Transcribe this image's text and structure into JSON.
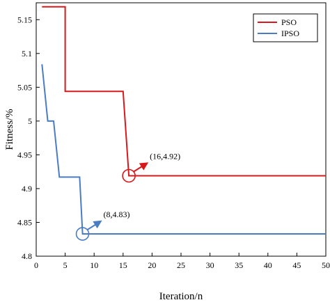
{
  "chart_data": {
    "type": "line",
    "title": "",
    "xlabel": "Iteration/n",
    "ylabel": "Fitness/%",
    "xlim": [
      0,
      50
    ],
    "ylim": [
      4.8,
      5.175
    ],
    "xticks": [
      0,
      5,
      10,
      15,
      20,
      25,
      30,
      35,
      40,
      45,
      50
    ],
    "yticks": [
      4.8,
      4.85,
      4.9,
      4.95,
      5.0,
      5.05,
      5.1,
      5.15
    ],
    "ytick_labels": [
      "4.8",
      "4.85",
      "4.9",
      "4.95",
      "5",
      "5.05",
      "5.1",
      "5.15"
    ],
    "grid": false,
    "legend_position": "top-right",
    "series": [
      {
        "name": "PSO",
        "color": "#d7191c",
        "step": true,
        "points": [
          [
            1,
            5.169
          ],
          [
            5,
            5.169
          ],
          [
            5,
            5.044
          ],
          [
            15,
            5.044
          ],
          [
            16,
            4.919
          ],
          [
            50,
            4.919
          ]
        ]
      },
      {
        "name": "IPSO",
        "color": "#4a7cc4",
        "step": true,
        "points": [
          [
            1,
            5.084
          ],
          [
            2,
            5.0
          ],
          [
            3,
            5.0
          ],
          [
            4,
            4.917
          ],
          [
            7.5,
            4.917
          ],
          [
            8,
            4.833
          ],
          [
            50,
            4.833
          ]
        ]
      }
    ],
    "annotations": [
      {
        "label": "(16,4.92)",
        "x": 16,
        "y": 4.919,
        "color": "#d7191c"
      },
      {
        "label": "(8,4.83)",
        "x": 8,
        "y": 4.833,
        "color": "#4a7cc4"
      }
    ]
  }
}
